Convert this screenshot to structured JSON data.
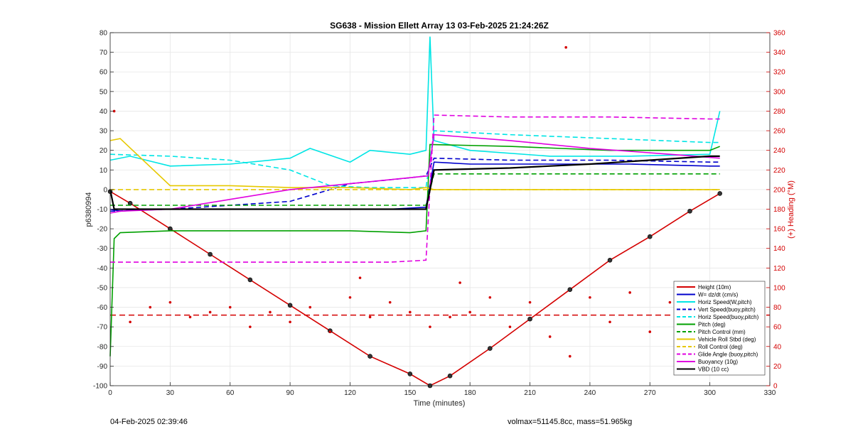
{
  "figure": {
    "footer_left": "04-Feb-2025 02:39:46",
    "footer_right": "volmax=51145.8cc, mass=51.965kg"
  },
  "chart_data": {
    "type": "line",
    "title": "SG638 - Mission Ellett Array 13 03-Feb-2025 21:24:26Z",
    "xlabel": "Time (minutes)",
    "ylabel": "p6380994",
    "y2label": "(+) Heading (°M)",
    "xlim": [
      0,
      330
    ],
    "ylim": [
      -100,
      80
    ],
    "y2lim": [
      0,
      360
    ],
    "xticks": [
      0,
      30,
      60,
      90,
      120,
      150,
      180,
      210,
      240,
      270,
      300,
      330
    ],
    "yticks": [
      -100,
      -90,
      -80,
      -70,
      -60,
      -50,
      -40,
      -30,
      -20,
      -10,
      0,
      10,
      20,
      30,
      40,
      50,
      60,
      70,
      80
    ],
    "y2ticks": [
      0,
      20,
      40,
      60,
      80,
      100,
      120,
      140,
      160,
      180,
      200,
      220,
      240,
      260,
      280,
      300,
      320,
      340,
      360
    ],
    "grid": true,
    "legend_position": "lower-right",
    "series": [
      {
        "name": "Height (10m)",
        "color": "#d40000",
        "style": "solid",
        "x": [
          0,
          10,
          30,
          50,
          70,
          90,
          110,
          130,
          150,
          160,
          170,
          190,
          210,
          230,
          250,
          270,
          290,
          305
        ],
        "y": [
          -1,
          -7,
          -20,
          -33,
          -46,
          -59,
          -72,
          -85,
          -94,
          -100,
          -95,
          -81,
          -66,
          -51,
          -36,
          -24,
          -11,
          -2
        ]
      },
      {
        "name": "W= dz/dt (cm/s)",
        "color": "#0000cc",
        "style": "solid",
        "x": [
          0,
          5,
          20,
          60,
          100,
          140,
          158,
          162,
          180,
          220,
          260,
          300,
          305
        ],
        "y": [
          -10,
          -11,
          -10,
          -10,
          -10,
          -10,
          -9,
          14,
          13,
          13,
          13,
          12,
          12
        ]
      },
      {
        "name": "Horiz Speed(W,pitch)",
        "color": "#00e5e5",
        "style": "solid",
        "x": [
          0,
          10,
          30,
          60,
          90,
          100,
          120,
          130,
          150,
          158,
          160,
          162,
          180,
          220,
          260,
          300,
          305
        ],
        "y": [
          15,
          17,
          12,
          13,
          16,
          21,
          14,
          20,
          18,
          20,
          78,
          25,
          20,
          17,
          17,
          18,
          40
        ],
        "note": "approx"
      },
      {
        "name": "Vert Speed(buoy,pitch)",
        "color": "#0000cc",
        "style": "dashed",
        "x": [
          0,
          30,
          60,
          90,
          120,
          150,
          158,
          162,
          200,
          250,
          300,
          305
        ],
        "y": [
          -11,
          -10,
          -8,
          -6,
          3,
          6,
          7,
          16,
          15,
          15,
          14,
          14
        ]
      },
      {
        "name": "Horiz Speed(buoy,pitch)",
        "color": "#00e5e5",
        "style": "dashed",
        "x": [
          0,
          30,
          60,
          90,
          110,
          130,
          158,
          162,
          200,
          250,
          300,
          305
        ],
        "y": [
          18,
          17,
          15,
          10,
          2,
          1,
          1,
          30,
          28,
          26,
          24,
          24
        ]
      },
      {
        "name": "Pitch (deg)",
        "color": "#00a000",
        "style": "solid",
        "x": [
          0,
          2,
          5,
          30,
          60,
          90,
          120,
          150,
          158,
          160,
          200,
          250,
          300,
          305
        ],
        "y": [
          -85,
          -25,
          -22,
          -21,
          -21,
          -21,
          -21,
          -22,
          -21,
          23,
          22,
          20,
          20,
          22
        ]
      },
      {
        "name": "Pitch Control (mm)",
        "color": "#00a000",
        "style": "dashed",
        "x": [
          0,
          5,
          60,
          120,
          158,
          162,
          200,
          250,
          300,
          305
        ],
        "y": [
          -8,
          -8,
          -8,
          -8,
          -8,
          8,
          8,
          8,
          8,
          8
        ]
      },
      {
        "name": "Vehicle Roll Stbd (deg)",
        "color": "#e6c800",
        "style": "solid",
        "x": [
          0,
          5,
          30,
          60,
          90,
          120,
          150,
          158,
          162,
          200,
          250,
          300,
          305
        ],
        "y": [
          25,
          26,
          2,
          2,
          1,
          1,
          0,
          1,
          0,
          0,
          0,
          0,
          0
        ]
      },
      {
        "name": "Roll Control (deg)",
        "color": "#e6c800",
        "style": "dashed",
        "x": [
          0,
          5,
          30,
          60,
          90,
          120,
          150,
          158,
          162,
          200,
          250,
          300,
          305
        ],
        "y": [
          0,
          0,
          0,
          0,
          0,
          0,
          0,
          0,
          0,
          0,
          0,
          0,
          0
        ]
      },
      {
        "name": "Glide Angle (buoy,pitch)",
        "color": "#e000e0",
        "style": "dashed",
        "x": [
          0,
          20,
          60,
          100,
          140,
          158,
          162,
          200,
          250,
          300,
          305
        ],
        "y": [
          -37,
          -37,
          -37,
          -37,
          -37,
          -36,
          38,
          37,
          37,
          36,
          36
        ]
      },
      {
        "name": "Buoyancy (10g)",
        "color": "#e000e0",
        "style": "solid",
        "x": [
          0,
          5,
          30,
          60,
          90,
          120,
          159,
          162,
          200,
          240,
          280,
          305
        ],
        "y": [
          -12,
          -11,
          -10,
          -5,
          0,
          3,
          7,
          28,
          25,
          21,
          18,
          16
        ]
      },
      {
        "name": "VBD (10 cc)",
        "color": "#000000",
        "style": "solid",
        "x": [
          0,
          2,
          5,
          30,
          60,
          90,
          120,
          158,
          162,
          200,
          240,
          270,
          300,
          305
        ],
        "y": [
          0,
          -10,
          -10,
          -10,
          -10,
          -10,
          -10,
          -10,
          10,
          11,
          13,
          15,
          17,
          17
        ]
      },
      {
        "name": "Heading (°M)",
        "color": "#d40000",
        "style": "dotted",
        "axis": "y2",
        "x": [
          2,
          10,
          20,
          30,
          40,
          50,
          60,
          70,
          80,
          90,
          100,
          110,
          120,
          125,
          130,
          140,
          150,
          160,
          170,
          175,
          180,
          190,
          200,
          210,
          220,
          228,
          230,
          240,
          250,
          260,
          270,
          280,
          290,
          300
        ],
        "y": [
          280,
          65,
          80,
          85,
          70,
          75,
          80,
          60,
          75,
          65,
          80,
          55,
          90,
          110,
          70,
          85,
          75,
          60,
          70,
          105,
          75,
          90,
          60,
          85,
          50,
          345,
          30,
          90,
          65,
          95,
          55,
          85,
          70,
          80
        ]
      }
    ],
    "reference_lines": [
      {
        "axis": "y2",
        "value": 72,
        "color": "#d40000",
        "style": "dashed"
      }
    ]
  }
}
